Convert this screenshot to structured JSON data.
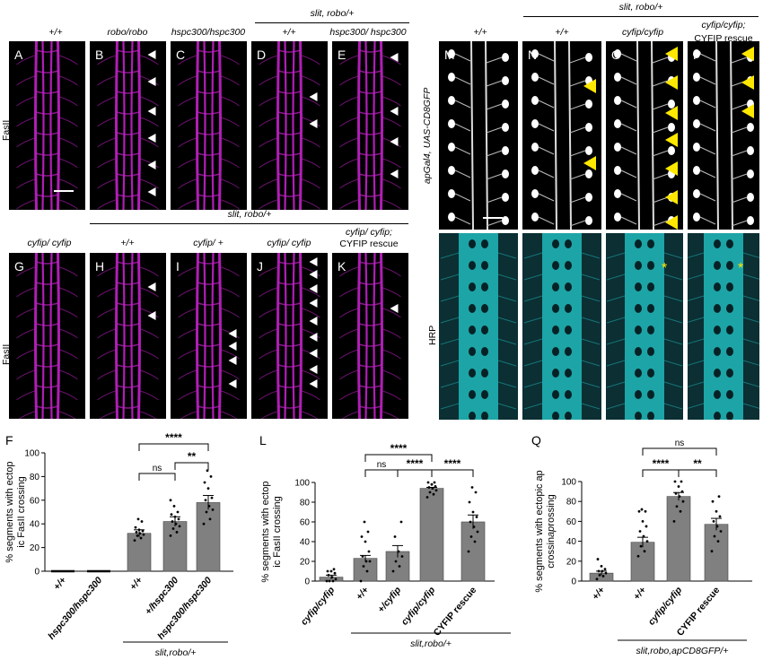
{
  "colors": {
    "magenta": "#c321c9",
    "cyan": "#21b8bb",
    "arrow_white": "#ffffff",
    "arrow_yellow": "#ffe800",
    "bar": "#808080"
  },
  "top_left": {
    "genotypes": [
      "+/+",
      "robo/robo",
      "hspc300/hspc300",
      "+/+",
      "hspc300/ hspc300"
    ],
    "bracket": "slit, robo/+",
    "letters": [
      "A",
      "B",
      "C",
      "D",
      "E"
    ],
    "row_label": "FasII"
  },
  "mid_left": {
    "bracket": "slit, robo/+",
    "genotypes": [
      "cyfip/ cyfip",
      "+/+",
      "cyfip/ +",
      "cyfip/ cyfip",
      "cyfip/ cyfip;",
      "CYFIP rescue"
    ],
    "letters": [
      "G",
      "H",
      "I",
      "J",
      "K"
    ],
    "row_label": "FasII"
  },
  "top_right": {
    "bracket": "slit, robo/+",
    "genotypes": [
      "+/+",
      "+/+",
      "cyfip/cyfip",
      "cyfip/cyfip;",
      "CYFIP rescue"
    ],
    "letters": [
      "M",
      "N",
      "O",
      "P"
    ],
    "row_label_top": "apGal4, UAS-CD8GFP",
    "row_label_bottom": "HRP",
    "asterisk": "*"
  },
  "chart_data": [
    {
      "panel": "F",
      "type": "bar",
      "ylabel": "% segments with ectopic FasII crossing",
      "ylim": [
        0,
        100
      ],
      "yticks": [
        0,
        20,
        40,
        60,
        80,
        100
      ],
      "categories": [
        "+/+",
        "hspc300/hspc300",
        "+/+",
        "+/hspc300",
        "hspc300/hspc300"
      ],
      "values": [
        0,
        0,
        32,
        42,
        58
      ],
      "errors": [
        0,
        0,
        3,
        4,
        6
      ],
      "points": [
        [],
        [],
        [
          26,
          28,
          30,
          31,
          32,
          33,
          34,
          35,
          37,
          42,
          44
        ],
        [
          30,
          33,
          36,
          38,
          40,
          42,
          44,
          46,
          48,
          50,
          55,
          60
        ],
        [
          40,
          44,
          50,
          52,
          55,
          60,
          62,
          70,
          75,
          80,
          85
        ]
      ],
      "group_label": "slit,robo/+",
      "significance": [
        "****",
        "ns",
        "**"
      ]
    },
    {
      "panel": "L",
      "type": "bar",
      "ylabel": "% segments with ectopic FasII crossing",
      "ylim": [
        0,
        100
      ],
      "yticks": [
        0,
        20,
        40,
        60,
        80,
        100
      ],
      "categories": [
        "cyfip/cyfip",
        "+/+",
        "+/cyfip",
        "cyfip/cyfip",
        "CYFIP rescue"
      ],
      "values": [
        4,
        23,
        30,
        94,
        60
      ],
      "errors": [
        2,
        3,
        6,
        1,
        7
      ],
      "points": [
        [
          0,
          0,
          0,
          2,
          4,
          6,
          8,
          10,
          10,
          12
        ],
        [
          0,
          10,
          15,
          20,
          20,
          25,
          30,
          40,
          45,
          50,
          60
        ],
        [
          10,
          15,
          20,
          25,
          30,
          45,
          60
        ],
        [
          85,
          88,
          90,
          92,
          94,
          95,
          96,
          98,
          100,
          100
        ],
        [
          30,
          40,
          45,
          50,
          55,
          60,
          65,
          70,
          80,
          90,
          95
        ]
      ],
      "group_label": "slit,robo/+",
      "significance": [
        "****",
        "ns",
        "****",
        "****"
      ]
    },
    {
      "panel": "Q",
      "type": "bar",
      "ylabel": "% segments with ectopic ap crossing",
      "ylim": [
        0,
        100
      ],
      "yticks": [
        0,
        20,
        40,
        60,
        80,
        100
      ],
      "categories": [
        "+/+",
        "+/+",
        "cyfip/cyfip",
        "CYFIP rescue"
      ],
      "values": [
        8,
        39,
        85,
        57
      ],
      "errors": [
        2,
        5,
        4,
        6
      ],
      "points": [
        [
          2,
          5,
          6,
          8,
          10,
          10,
          12,
          15,
          22
        ],
        [
          25,
          30,
          35,
          40,
          45,
          50,
          55,
          60,
          70,
          70,
          72
        ],
        [
          60,
          70,
          75,
          80,
          85,
          88,
          90,
          95,
          100,
          100
        ],
        [
          30,
          40,
          45,
          50,
          55,
          60,
          65,
          70,
          80,
          85
        ]
      ],
      "group_label": "slit,robo,apCD8GFP/+",
      "significance": [
        "ns",
        "****",
        "**"
      ]
    }
  ],
  "figure_letters": {
    "F": "F",
    "L": "L",
    "Q": "Q"
  }
}
